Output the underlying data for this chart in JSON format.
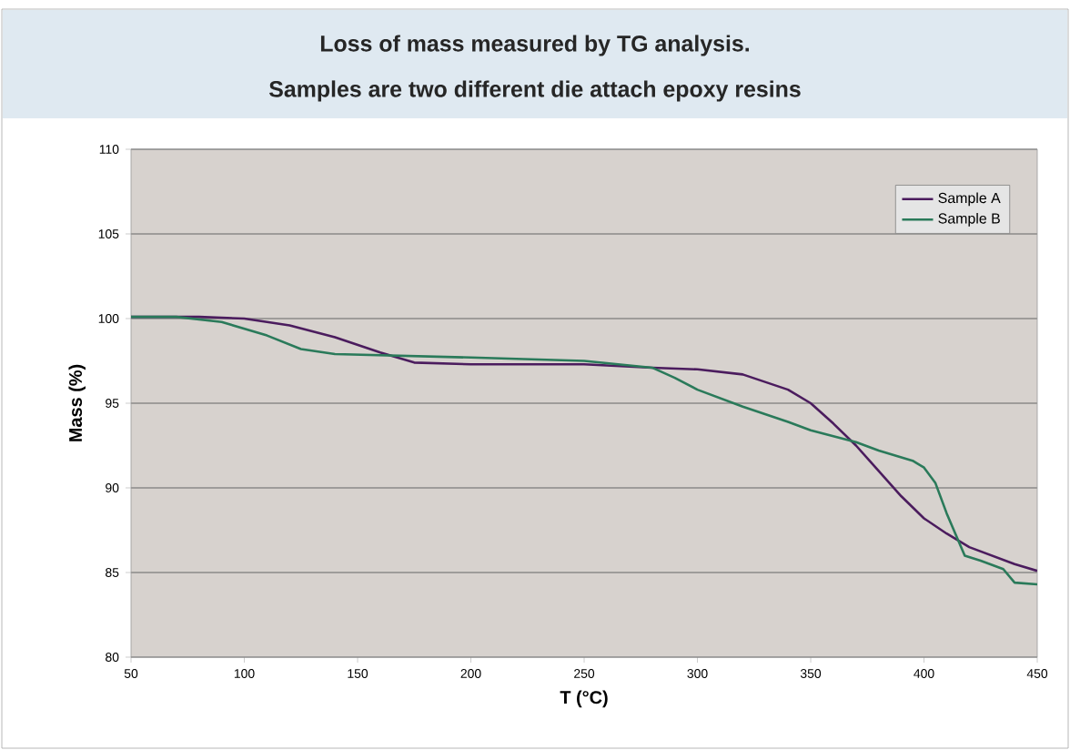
{
  "chart_data": {
    "type": "line",
    "title": "Loss of mass measured by TG analysis.",
    "subtitle": "Samples are two different die attach epoxy resins",
    "xlabel": "T (°C)",
    "ylabel": "Mass (%)",
    "xlim": [
      50,
      450
    ],
    "ylim": [
      80,
      110
    ],
    "xticks": [
      50,
      100,
      150,
      200,
      250,
      300,
      350,
      400,
      450
    ],
    "yticks": [
      80,
      85,
      90,
      95,
      100,
      105,
      110
    ],
    "grid": "y",
    "legend": "top right",
    "marker": "none",
    "line_style": "solid",
    "series": [
      {
        "name": "Sample A",
        "color": "#4b1c5e",
        "x": [
          50,
          80,
          100,
          120,
          140,
          160,
          175,
          200,
          250,
          280,
          300,
          320,
          340,
          350,
          360,
          370,
          380,
          390,
          400,
          410,
          420,
          430,
          440,
          450
        ],
        "values": [
          100.1,
          100.1,
          100,
          99.6,
          98.9,
          98,
          97.4,
          97.3,
          97.3,
          97.1,
          97,
          96.7,
          95.8,
          95,
          93.8,
          92.5,
          91,
          89.5,
          88.2,
          87.3,
          86.5,
          86,
          85.5,
          85.1
        ]
      },
      {
        "name": "Sample B",
        "color": "#2a7a5a",
        "x": [
          50,
          70,
          90,
          110,
          125,
          140,
          170,
          200,
          250,
          280,
          290,
          300,
          320,
          340,
          350,
          370,
          380,
          395,
          400,
          405,
          410,
          418,
          425,
          435,
          440,
          450
        ],
        "values": [
          100.1,
          100.1,
          99.8,
          99,
          98.2,
          97.9,
          97.8,
          97.7,
          97.5,
          97.1,
          96.5,
          95.8,
          94.8,
          93.9,
          93.4,
          92.7,
          92.2,
          91.6,
          91.2,
          90.3,
          88.5,
          86,
          85.7,
          85.2,
          84.4,
          84.3
        ]
      }
    ]
  }
}
